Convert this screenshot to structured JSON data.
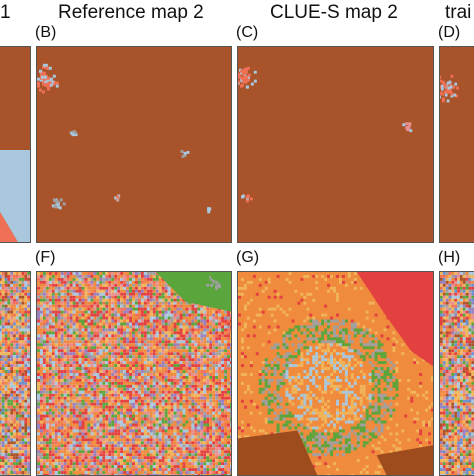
{
  "figure": {
    "column_titles": [
      "1",
      "Reference map 2",
      "CLUE-S map 2",
      "trai"
    ],
    "panel_letters": {
      "row1": [
        "(B)",
        "(C)",
        "(D)"
      ],
      "row2": [
        "(F)",
        "(G)",
        "(H)"
      ]
    }
  },
  "colors": {
    "background_brown": "#a8532a",
    "salmon": "#f07055",
    "light_blue": "#a9c8dd",
    "gray": "#a0a0a0",
    "green": "#5aa53c",
    "orange": "#f08a3c",
    "tan": "#f0b55a",
    "red": "#e34040",
    "pink": "#e89090",
    "purple": "#9a7fbf",
    "blue": "#6b8fcf",
    "dark_brown": "#9e4c1e"
  }
}
